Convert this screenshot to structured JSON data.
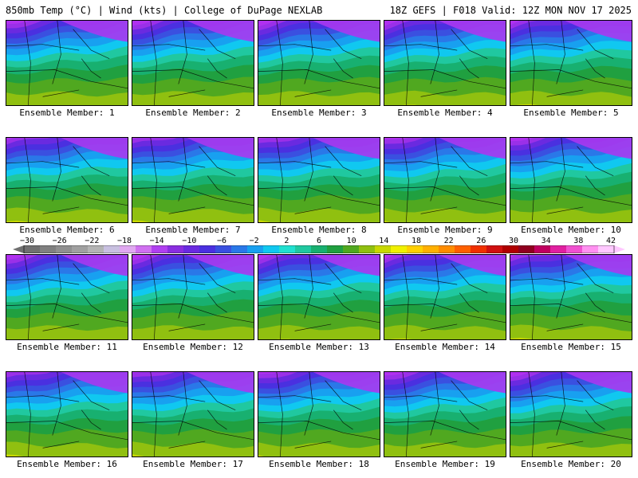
{
  "header": {
    "left": "850mb Temp (°C) | Wind (kts) | College of DuPage NEXLAB",
    "right": "18Z GEFS | F018 Valid: 12Z MON NOV 17 2025"
  },
  "members": [
    "Ensemble Member: 1",
    "Ensemble Member: 2",
    "Ensemble Member: 3",
    "Ensemble Member: 4",
    "Ensemble Member: 5",
    "Ensemble Member: 6",
    "Ensemble Member: 7",
    "Ensemble Member: 8",
    "Ensemble Member: 9",
    "Ensemble Member: 10",
    "Ensemble Member: 11",
    "Ensemble Member: 12",
    "Ensemble Member: 13",
    "Ensemble Member: 14",
    "Ensemble Member: 15",
    "Ensemble Member: 16",
    "Ensemble Member: 17",
    "Ensemble Member: 18",
    "Ensemble Member: 19",
    "Ensemble Member: 20"
  ],
  "colorbar": {
    "tick_labels": [
      "−30",
      "−26",
      "−22",
      "−18",
      "−14",
      "−10",
      "−6",
      "−2",
      "2",
      "6",
      "10",
      "14",
      "18",
      "22",
      "26",
      "30",
      "34",
      "38",
      "42"
    ],
    "colors": [
      "#707070",
      "#808080",
      "#909090",
      "#a0a0a0",
      "#b4b4b4",
      "#c8c0e0",
      "#e0a8f0",
      "#d070f0",
      "#b040f0",
      "#8a2ee0",
      "#6a2ae0",
      "#4a30e0",
      "#3a50e0",
      "#2a78e8",
      "#18a0f0",
      "#10c8f0",
      "#20e0d0",
      "#20c8a0",
      "#18b070",
      "#20a040",
      "#50a820",
      "#90c010",
      "#c8d800",
      "#f0f000",
      "#ffd000",
      "#ffb000",
      "#ff8c00",
      "#ff6000",
      "#f03000",
      "#d01010",
      "#b00000",
      "#900020",
      "#c00060",
      "#e020a0",
      "#f050d0",
      "#ff90f0",
      "#ffc8ff"
    ]
  }
}
